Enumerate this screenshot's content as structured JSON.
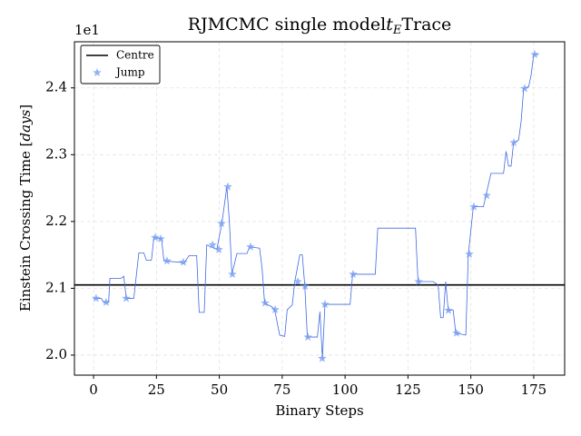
{
  "chart_data": {
    "type": "line",
    "title": {
      "text": "RJMCMC single model",
      "math": "t",
      "subscript": "E",
      "suffix": "Trace"
    },
    "x_label": "Binary Steps",
    "y_label_parts": [
      "Einstein Crossing Time [",
      "days",
      "]"
    ],
    "y_offset_label": "1e1",
    "xlim": [
      -7.6,
      187.3
    ],
    "ylim": [
      19.7,
      24.69
    ],
    "xticks": [
      0,
      25,
      50,
      75,
      100,
      125,
      150,
      175
    ],
    "yticks": [
      {
        "value": 20,
        "label": "2.0"
      },
      {
        "value": 21,
        "label": "2.1"
      },
      {
        "value": 22,
        "label": "2.2"
      },
      {
        "value": 23,
        "label": "2.3"
      },
      {
        "value": 24,
        "label": "2.4"
      }
    ],
    "grid": true,
    "legend": "upper left",
    "reference_lines": [
      {
        "name": "Centre",
        "value": 21.05,
        "color": "#000000"
      }
    ],
    "series": [
      {
        "mode": "line",
        "color": "#4169e1",
        "x": [
          0,
          3,
          4,
          6,
          6.5,
          11,
          12,
          13,
          16,
          18,
          20,
          21,
          23,
          24,
          27,
          28,
          34,
          36,
          38,
          41,
          42,
          44,
          45,
          49,
          51,
          53,
          54,
          55,
          57,
          61,
          62,
          66,
          67,
          68,
          71,
          72,
          74,
          76,
          77,
          79,
          80,
          82,
          83,
          84,
          85,
          89,
          90,
          91,
          92,
          102,
          103,
          112,
          113,
          128,
          129,
          135,
          137,
          138,
          139,
          140,
          141,
          143,
          144,
          148,
          149,
          151,
          155,
          156,
          158,
          163,
          164,
          165,
          166,
          167,
          169,
          170,
          171,
          173,
          174,
          175,
          177
        ],
        "values": [
          20.85,
          20.85,
          20.79,
          20.79,
          21.15,
          21.15,
          21.18,
          20.85,
          20.85,
          21.53,
          21.53,
          21.42,
          21.42,
          21.76,
          21.74,
          21.41,
          21.39,
          21.38,
          21.49,
          21.49,
          20.64,
          20.64,
          21.65,
          21.58,
          21.97,
          22.52,
          22.0,
          21.21,
          21.52,
          21.52,
          21.62,
          21.6,
          21.3,
          20.78,
          20.72,
          20.68,
          20.3,
          20.28,
          20.68,
          20.75,
          21.1,
          21.5,
          21.5,
          21.03,
          20.27,
          20.27,
          20.65,
          19.95,
          20.76,
          20.76,
          21.21,
          21.21,
          21.9,
          21.9,
          21.1,
          21.1,
          21.05,
          20.56,
          20.56,
          21.1,
          20.67,
          20.67,
          20.33,
          20.3,
          21.51,
          22.22,
          22.22,
          22.39,
          22.72,
          22.72,
          23.05,
          22.83,
          22.83,
          23.18,
          23.22,
          23.5,
          23.99,
          24.02,
          24.2,
          24.5,
          24.5
        ]
      },
      {
        "mode": "markers",
        "name": "Jump",
        "color": "#6f9af0",
        "x": [
          1,
          5,
          13,
          24.5,
          26.7,
          29.2,
          35.7,
          47.3,
          49.8,
          50.9,
          53.4,
          55.2,
          62.4,
          68.2,
          72.2,
          81.2,
          84.1,
          85.2,
          90.9,
          92,
          103.2,
          129.2,
          141.1,
          144.3,
          149.4,
          151.2,
          156.3,
          167.1,
          171.4,
          175.4
        ],
        "values": [
          20.85,
          20.79,
          20.85,
          21.76,
          21.74,
          21.41,
          21.39,
          21.65,
          21.58,
          21.97,
          22.52,
          21.21,
          21.62,
          20.78,
          20.68,
          21.1,
          21.03,
          20.27,
          19.95,
          20.76,
          21.21,
          21.1,
          20.67,
          20.33,
          21.51,
          22.22,
          22.39,
          23.18,
          23.99,
          24.5
        ]
      }
    ]
  }
}
